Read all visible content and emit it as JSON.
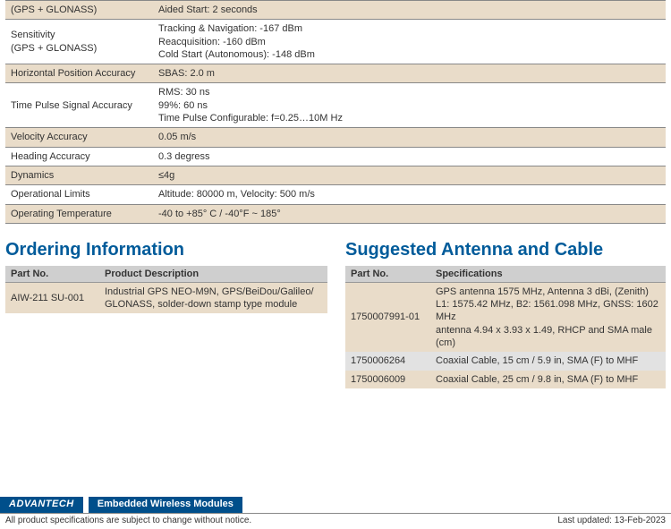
{
  "specTable": {
    "rows": [
      {
        "shade": true,
        "label": "(GPS + GLONASS)",
        "value": "Aided Start: 2 seconds"
      },
      {
        "shade": false,
        "label": "Sensitivity\n(GPS + GLONASS)",
        "value": "Tracking & Navigation: -167 dBm\nReacquisition: -160 dBm\nCold Start (Autonomous): -148 dBm"
      },
      {
        "shade": true,
        "label": "Horizontal Position Accuracy",
        "value": "SBAS: 2.0 m"
      },
      {
        "shade": false,
        "label": "Time Pulse Signal Accuracy",
        "value": "RMS: 30 ns\n99%: 60 ns\nTime Pulse Configurable: f=0.25…10M Hz"
      },
      {
        "shade": true,
        "label": "Velocity Accuracy",
        "value": "0.05 m/s"
      },
      {
        "shade": false,
        "label": "Heading Accuracy",
        "value": "0.3 degress"
      },
      {
        "shade": true,
        "label": "Dynamics",
        "value": "≤4g"
      },
      {
        "shade": false,
        "label": "Operational Limits",
        "value": "Altitude: 80000 m, Velocity: 500 m/s"
      },
      {
        "shade": true,
        "label": "Operating Temperature",
        "value": "-40 to +85° C / -40°F ~ 185°"
      }
    ]
  },
  "ordering": {
    "title": "Ordering Information",
    "headers": [
      "Part No.",
      "Product Description"
    ],
    "rows": [
      {
        "cells": [
          "AIW-211 SU-001",
          "Industrial GPS NEO-M9N, GPS/BeiDou/Galileo/\nGLONASS, solder-down stamp type module"
        ]
      }
    ]
  },
  "antenna": {
    "title": "Suggested Antenna and Cable",
    "headers": [
      "Part No.",
      "Specifications"
    ],
    "rows": [
      {
        "cells": [
          "1750007991-01",
          "GPS antenna 1575 MHz, Antenna 3 dBi, (Zenith)\nL1: 1575.42 MHz, B2: 1561.098 MHz, GNSS: 1602 MHz\nantenna 4.94 x 3.93 x 1.49, RHCP and SMA male (cm)"
        ]
      },
      {
        "cells": [
          "1750006264",
          "Coaxial Cable, 15 cm / 5.9 in, SMA (F) to MHF"
        ]
      },
      {
        "cells": [
          "1750006009",
          "Coaxial Cable, 25 cm / 9.8 in, SMA (F) to MHF"
        ]
      }
    ]
  },
  "footer": {
    "logo": "ADVANTECH",
    "category": "Embedded Wireless Modules",
    "notice": "All product specifications are subject to change without notice.",
    "updated": "Last updated: 13-Feb-2023"
  }
}
